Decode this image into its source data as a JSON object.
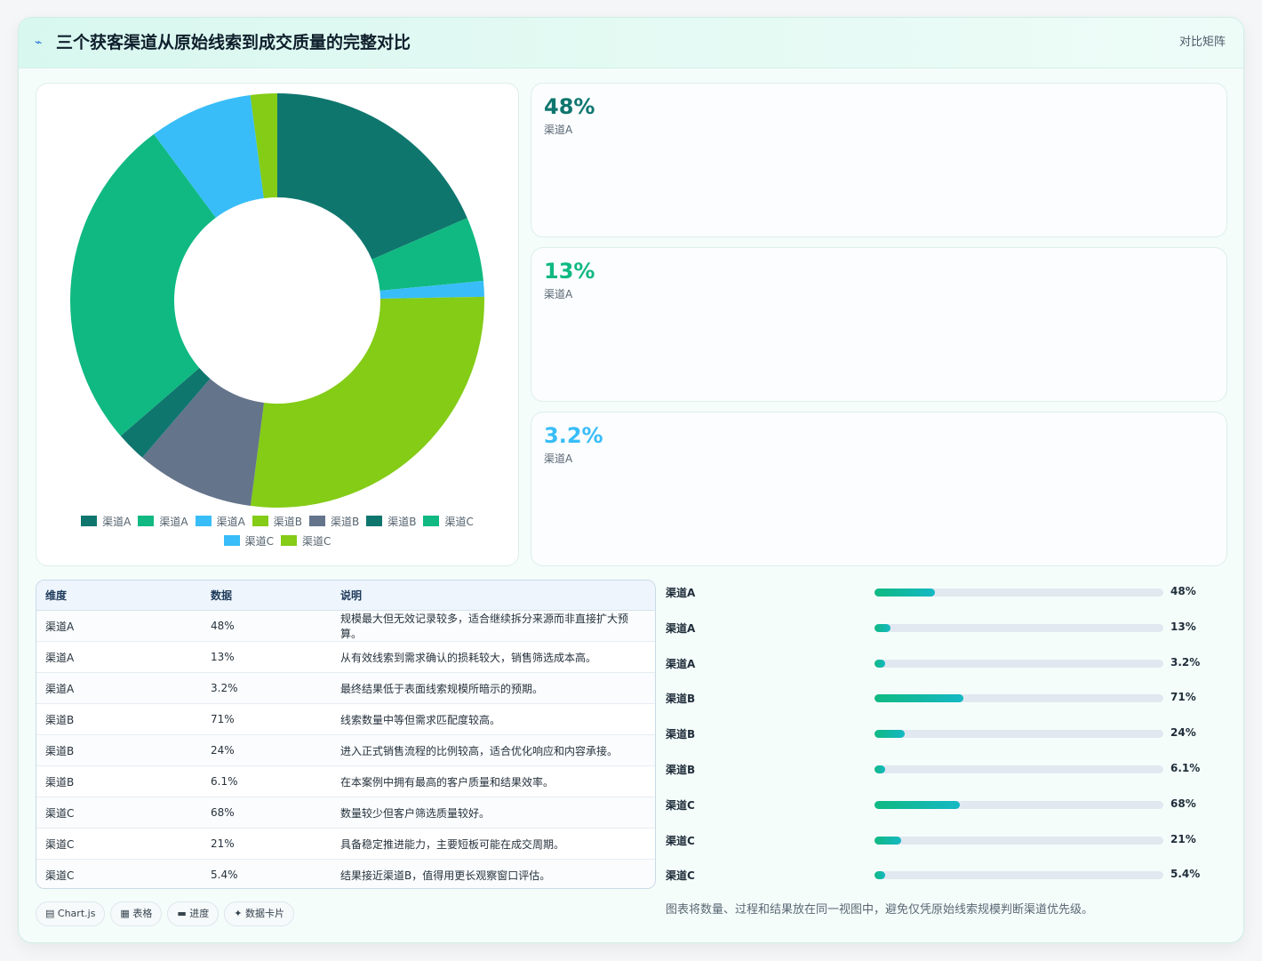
{
  "header": {
    "title": "三个获客渠道从原始线索到成交质量的完整对比",
    "link_label": "对比矩阵",
    "icon": "lightning-icon"
  },
  "colors": {
    "dark_teal": "#0f766e",
    "green": "#10b981",
    "sky": "#38bdf8",
    "lime": "#84cc16",
    "slate": "#64748b"
  },
  "chart_data": {
    "type": "pie",
    "variant": "doughnut",
    "slices": [
      {
        "label": "渠道A",
        "value": 48,
        "color": "#0f766e"
      },
      {
        "label": "渠道A",
        "value": 13,
        "color": "#10b981"
      },
      {
        "label": "渠道A",
        "value": 3.2,
        "color": "#38bdf8"
      },
      {
        "label": "渠道B",
        "value": 71,
        "color": "#84cc16"
      },
      {
        "label": "渠道B",
        "value": 24,
        "color": "#64748b"
      },
      {
        "label": "渠道B",
        "value": 6.1,
        "color": "#0f766e"
      },
      {
        "label": "渠道C",
        "value": 68,
        "color": "#10b981"
      },
      {
        "label": "渠道C",
        "value": 21,
        "color": "#38bdf8"
      },
      {
        "label": "渠道C",
        "value": 5.4,
        "color": "#84cc16"
      }
    ],
    "legend_position": "bottom"
  },
  "stats": [
    {
      "value": "48%",
      "label": "渠道A",
      "color": "#0f766e"
    },
    {
      "value": "13%",
      "label": "渠道A",
      "color": "#10b981"
    },
    {
      "value": "3.2%",
      "label": "渠道A",
      "color": "#38bdf8"
    }
  ],
  "table": {
    "headers": [
      "维度",
      "数据",
      "说明"
    ],
    "rows": [
      [
        "渠道A",
        "48%",
        "规模最大但无效记录较多，适合继续拆分来源而非直接扩大预算。"
      ],
      [
        "渠道A",
        "13%",
        "从有效线索到需求确认的损耗较大，销售筛选成本高。"
      ],
      [
        "渠道A",
        "3.2%",
        "最终结果低于表面线索规模所暗示的预期。"
      ],
      [
        "渠道B",
        "71%",
        "线索数量中等但需求匹配度较高。"
      ],
      [
        "渠道B",
        "24%",
        "进入正式销售流程的比例较高，适合优化响应和内容承接。"
      ],
      [
        "渠道B",
        "6.1%",
        "在本案例中拥有最高的客户质量和结果效率。"
      ],
      [
        "渠道C",
        "68%",
        "数量较少但客户筛选质量较好。"
      ],
      [
        "渠道C",
        "21%",
        "具备稳定推进能力，主要短板可能在成交周期。"
      ],
      [
        "渠道C",
        "5.4%",
        "结果接近渠道B，值得用更长观察窗口评估。"
      ]
    ]
  },
  "progress": [
    {
      "label": "渠道A",
      "value": 48,
      "display": "48%"
    },
    {
      "label": "渠道A",
      "value": 13,
      "display": "13%"
    },
    {
      "label": "渠道A",
      "value": 3.2,
      "display": "3.2%"
    },
    {
      "label": "渠道B",
      "value": 71,
      "display": "71%"
    },
    {
      "label": "渠道B",
      "value": 24,
      "display": "24%"
    },
    {
      "label": "渠道B",
      "value": 6.1,
      "display": "6.1%"
    },
    {
      "label": "渠道C",
      "value": 68,
      "display": "68%"
    },
    {
      "label": "渠道C",
      "value": 21,
      "display": "21%"
    },
    {
      "label": "渠道C",
      "value": 5.4,
      "display": "5.4%"
    }
  ],
  "progress_max": 230,
  "chips": [
    {
      "icon": "chart-icon",
      "glyph": "▤",
      "label": "Chart.js"
    },
    {
      "icon": "table-icon",
      "glyph": "▦",
      "label": "表格"
    },
    {
      "icon": "progress-icon",
      "glyph": "▬",
      "label": "进度"
    },
    {
      "icon": "card-icon",
      "glyph": "✦",
      "label": "数据卡片"
    }
  ],
  "note": "图表将数量、过程和结果放在同一视图中，避免仅凭原始线索规模判断渠道优先级。"
}
